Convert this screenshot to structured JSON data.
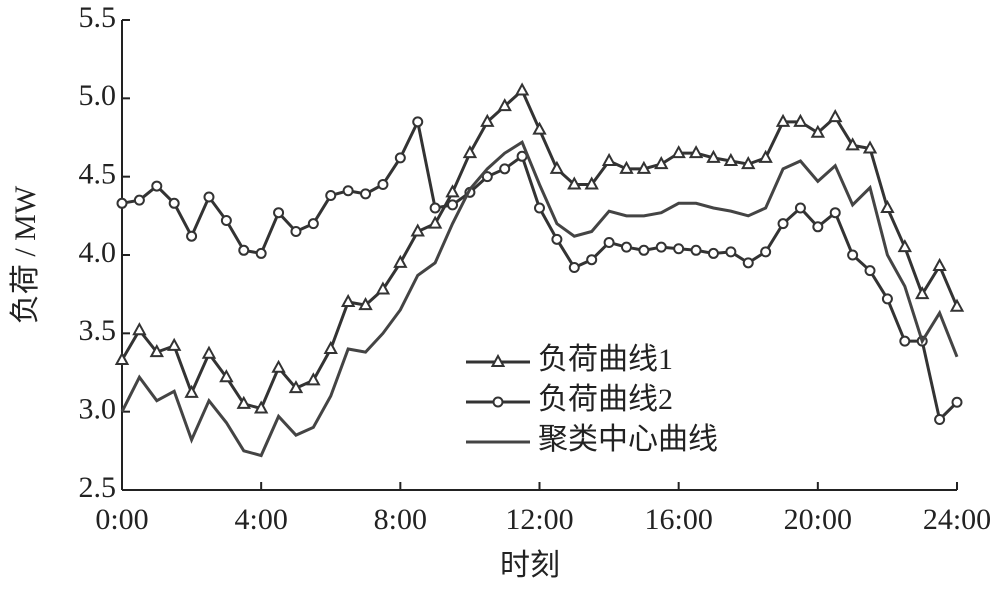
{
  "chart_data": {
    "type": "line",
    "x_label": "时刻",
    "y_label": "负荷 / MW",
    "x": [
      0,
      0.5,
      1,
      1.5,
      2,
      2.5,
      3,
      3.5,
      4,
      4.5,
      5,
      5.5,
      6,
      6.5,
      7,
      7.5,
      8,
      8.5,
      9,
      9.5,
      10,
      10.5,
      11,
      11.5,
      12,
      12.5,
      13,
      13.5,
      14,
      14.5,
      15,
      15.5,
      16,
      16.5,
      17,
      17.5,
      18,
      18.5,
      19,
      19.5,
      20,
      20.5,
      21,
      21.5,
      22,
      22.5,
      23,
      23.5,
      24
    ],
    "series": [
      {
        "name": "负荷曲线1",
        "color": "#333333",
        "marker": "triangle",
        "values": [
          3.33,
          3.52,
          3.38,
          3.42,
          3.12,
          3.37,
          3.22,
          3.05,
          3.02,
          3.28,
          3.15,
          3.2,
          3.4,
          3.7,
          3.68,
          3.78,
          3.95,
          4.15,
          4.2,
          4.4,
          4.65,
          4.85,
          4.95,
          5.05,
          4.8,
          4.55,
          4.45,
          4.45,
          4.6,
          4.55,
          4.55,
          4.58,
          4.65,
          4.65,
          4.62,
          4.6,
          4.58,
          4.62,
          4.85,
          4.85,
          4.78,
          4.88,
          4.7,
          4.68,
          4.3,
          4.05,
          3.75,
          3.93,
          3.67
        ]
      },
      {
        "name": "负荷曲线2",
        "color": "#333333",
        "marker": "circle",
        "values": [
          4.33,
          4.35,
          4.44,
          4.33,
          4.12,
          4.37,
          4.22,
          4.03,
          4.01,
          4.27,
          4.15,
          4.2,
          4.38,
          4.41,
          4.39,
          4.45,
          4.62,
          4.85,
          4.3,
          4.32,
          4.4,
          4.5,
          4.55,
          4.63,
          4.3,
          4.1,
          3.92,
          3.97,
          4.08,
          4.05,
          4.03,
          4.05,
          4.04,
          4.03,
          4.01,
          4.02,
          3.95,
          4.02,
          4.2,
          4.3,
          4.18,
          4.27,
          4.0,
          3.9,
          3.72,
          3.45,
          3.45,
          2.95,
          3.06
        ]
      },
      {
        "name": "聚类中心曲线",
        "color": "#444444",
        "marker": "none",
        "values": [
          3.0,
          3.22,
          3.07,
          3.13,
          2.82,
          3.07,
          2.93,
          2.75,
          2.72,
          2.97,
          2.85,
          2.9,
          3.1,
          3.4,
          3.38,
          3.5,
          3.65,
          3.87,
          3.95,
          4.2,
          4.42,
          4.55,
          4.65,
          4.72,
          4.45,
          4.2,
          4.12,
          4.15,
          4.28,
          4.25,
          4.25,
          4.27,
          4.33,
          4.33,
          4.3,
          4.28,
          4.25,
          4.3,
          4.55,
          4.6,
          4.47,
          4.57,
          4.32,
          4.43,
          4.0,
          3.8,
          3.45,
          3.63,
          3.35
        ]
      }
    ],
    "xlim": [
      0,
      24
    ],
    "xticks": [
      {
        "value": 0,
        "label": "0:00"
      },
      {
        "value": 4,
        "label": "4:00"
      },
      {
        "value": 8,
        "label": "8:00"
      },
      {
        "value": 12,
        "label": "12:00"
      },
      {
        "value": 16,
        "label": "16:00"
      },
      {
        "value": 20,
        "label": "20:00"
      },
      {
        "value": 24,
        "label": "24:00"
      }
    ],
    "ylim": [
      2.5,
      5.5
    ],
    "yticks": [
      2.5,
      {
        "value": 3,
        "label": "3.0"
      },
      3.5,
      {
        "value": 4,
        "label": "4.0"
      },
      4.5,
      {
        "value": 5,
        "label": "5.0"
      },
      5.5
    ],
    "legend": "center"
  }
}
